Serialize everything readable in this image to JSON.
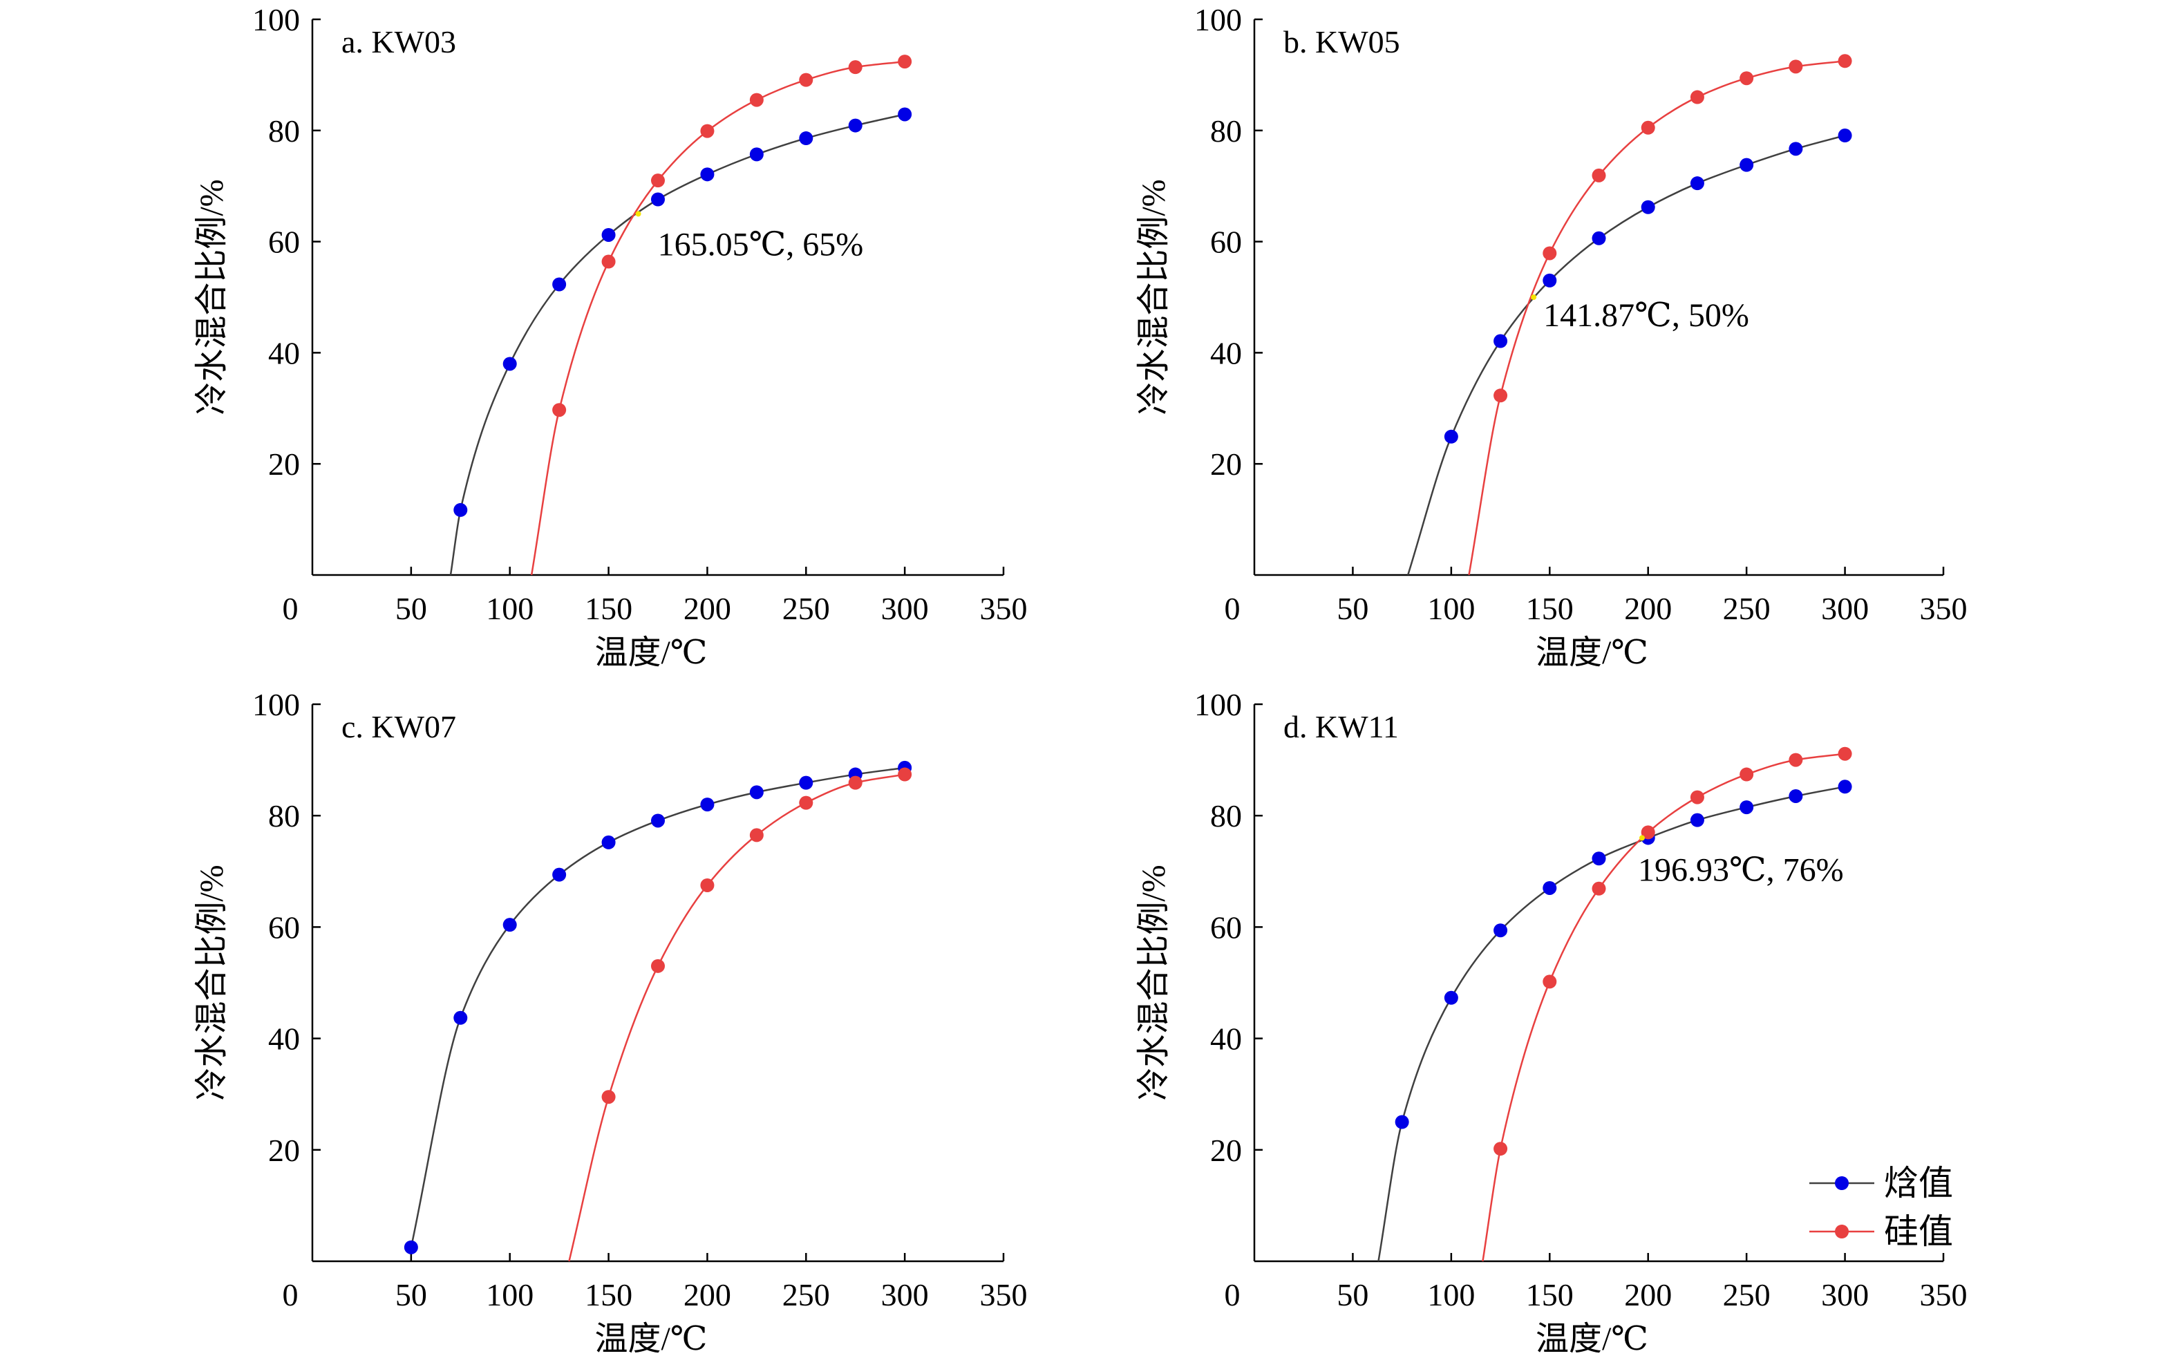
{
  "chart_data": [
    {
      "type": "line",
      "panel_label": "a. KW03",
      "xlabel": "温度/℃",
      "ylabel": "冷水混合比例/%",
      "xlim": [
        0,
        350
      ],
      "ylim": [
        0,
        100
      ],
      "x_ticks": [
        "0",
        "50",
        "100",
        "150",
        "200",
        "250",
        "300",
        "350"
      ],
      "y_ticks": [
        "20",
        "40",
        "60",
        "80",
        "100"
      ],
      "series": [
        {
          "name": "焓值",
          "color": "#0000e6",
          "line_color": "#404040",
          "x": [
            75,
            100,
            125,
            150,
            175,
            200,
            225,
            250,
            275,
            300
          ],
          "y": [
            11.7,
            38,
            52.3,
            61.2,
            67.6,
            72.1,
            75.7,
            78.6,
            80.9,
            82.9
          ],
          "curve_start": [
            70,
            0
          ]
        },
        {
          "name": "硅值",
          "color": "#e84040",
          "line_color": "#e84040",
          "x": [
            125,
            150,
            175,
            200,
            225,
            250,
            275,
            300
          ],
          "y": [
            29.7,
            56.4,
            71,
            79.9,
            85.5,
            89.1,
            91.4,
            92.4
          ],
          "curve_start": [
            111,
            0
          ]
        }
      ],
      "intersection": {
        "x": 165.05,
        "y": 65,
        "label": "165.05℃, 65%"
      }
    },
    {
      "type": "line",
      "panel_label": "b. KW05",
      "xlabel": "温度/℃",
      "ylabel": "冷水混合比例/%",
      "xlim": [
        0,
        350
      ],
      "ylim": [
        0,
        100
      ],
      "x_ticks": [
        "0",
        "50",
        "100",
        "150",
        "200",
        "250",
        "300",
        "350"
      ],
      "y_ticks": [
        "20",
        "40",
        "60",
        "80",
        "100"
      ],
      "series": [
        {
          "name": "焓值",
          "color": "#0000e6",
          "line_color": "#404040",
          "x": [
            100,
            125,
            150,
            175,
            200,
            225,
            250,
            275,
            300
          ],
          "y": [
            24.9,
            42.1,
            53,
            60.6,
            66.2,
            70.5,
            73.8,
            76.7,
            79.1
          ],
          "curve_start": [
            78,
            0
          ]
        },
        {
          "name": "硅值",
          "color": "#e84040",
          "line_color": "#e84040",
          "x": [
            125,
            150,
            175,
            200,
            225,
            250,
            275,
            300
          ],
          "y": [
            32.3,
            57.9,
            71.9,
            80.5,
            86,
            89.4,
            91.5,
            92.5
          ],
          "curve_start": [
            109,
            0
          ]
        }
      ],
      "intersection": {
        "x": 141.87,
        "y": 50,
        "label": "141.87℃, 50%"
      }
    },
    {
      "type": "line",
      "panel_label": "c. KW07",
      "xlabel": "温度/℃",
      "ylabel": "冷水混合比例/%",
      "xlim": [
        0,
        350
      ],
      "ylim": [
        0,
        100
      ],
      "x_ticks": [
        "0",
        "50",
        "100",
        "150",
        "200",
        "250",
        "300",
        "350"
      ],
      "y_ticks": [
        "20",
        "40",
        "60",
        "80",
        "100"
      ],
      "series": [
        {
          "name": "焓值",
          "color": "#0000e6",
          "line_color": "#404040",
          "x": [
            50,
            75,
            100,
            125,
            150,
            175,
            200,
            225,
            250,
            275,
            300
          ],
          "y": [
            2.5,
            43.7,
            60.4,
            69.4,
            75.2,
            79.1,
            82,
            84.2,
            85.9,
            87.4,
            88.6
          ],
          "curve_start": null
        },
        {
          "name": "硅值",
          "color": "#e84040",
          "line_color": "#e84040",
          "x": [
            150,
            175,
            200,
            225,
            250,
            275,
            300
          ],
          "y": [
            29.5,
            53,
            67.5,
            76.5,
            82.3,
            85.9,
            87.4
          ],
          "curve_start": [
            130,
            0
          ]
        }
      ],
      "intersection": null
    },
    {
      "type": "line",
      "panel_label": "d. KW11",
      "xlabel": "温度/℃",
      "ylabel": "冷水混合比例/%",
      "xlim": [
        0,
        350
      ],
      "ylim": [
        0,
        100
      ],
      "x_ticks": [
        "0",
        "50",
        "100",
        "150",
        "200",
        "250",
        "300",
        "350"
      ],
      "y_ticks": [
        "20",
        "40",
        "60",
        "80",
        "100"
      ],
      "series": [
        {
          "name": "焓值",
          "color": "#0000e6",
          "line_color": "#404040",
          "x": [
            75,
            100,
            125,
            150,
            175,
            200,
            225,
            250,
            275,
            300
          ],
          "y": [
            25,
            47.3,
            59.4,
            67,
            72.3,
            76,
            79.2,
            81.5,
            83.5,
            85.2
          ],
          "curve_start": [
            63,
            0
          ]
        },
        {
          "name": "硅值",
          "color": "#e84040",
          "line_color": "#e84040",
          "x": [
            125,
            150,
            175,
            200,
            225,
            250,
            275,
            300
          ],
          "y": [
            20.2,
            50.2,
            66.9,
            77,
            83.3,
            87.4,
            90,
            91.1
          ],
          "curve_start": [
            116,
            0
          ]
        }
      ],
      "intersection": {
        "x": 196.93,
        "y": 76,
        "label": "196.93℃, 76%"
      }
    }
  ],
  "legend": {
    "placement": "bottom-right of panel d",
    "items": [
      {
        "label": "焓值",
        "color": "#0000e6",
        "line_color": "#404040"
      },
      {
        "label": "硅值",
        "color": "#e84040",
        "line_color": "#e84040"
      }
    ]
  }
}
